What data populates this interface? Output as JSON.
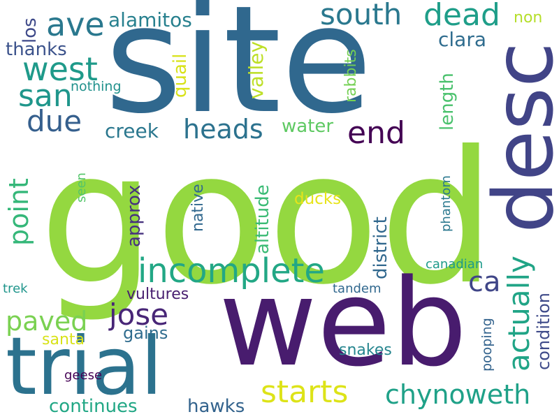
{
  "words": [
    {
      "text": "good",
      "color": "#94d840"
    },
    {
      "text": "site",
      "color": "#30688e"
    },
    {
      "text": "web",
      "color": "#481c6e"
    },
    {
      "text": "desc",
      "color": "#414487"
    },
    {
      "text": "trial",
      "color": "#2c728e"
    },
    {
      "text": "incomplete",
      "color": "#22a785"
    },
    {
      "text": "west",
      "color": "#1f9a8a"
    },
    {
      "text": "south",
      "color": "#2a788e"
    },
    {
      "text": "dead",
      "color": "#1f9e89"
    },
    {
      "text": "ave",
      "color": "#2a788e"
    },
    {
      "text": "san",
      "color": "#1f968b"
    },
    {
      "text": "due",
      "color": "#355f8d"
    },
    {
      "text": "end",
      "color": "#440154"
    },
    {
      "text": "heads",
      "color": "#2c728e"
    },
    {
      "text": "jose",
      "color": "#482677"
    },
    {
      "text": "ca",
      "color": "#404688"
    },
    {
      "text": "actually",
      "color": "#20a486"
    },
    {
      "text": "starts",
      "color": "#dde318"
    },
    {
      "text": "chynoweth",
      "color": "#1fa188"
    },
    {
      "text": "paved",
      "color": "#7ad151"
    },
    {
      "text": "point",
      "color": "#35b779"
    },
    {
      "text": "alamitos",
      "color": "#27808e"
    },
    {
      "text": "los",
      "color": "#3e4989"
    },
    {
      "text": "thanks",
      "color": "#3b528b"
    },
    {
      "text": "clara",
      "color": "#2f6c8e"
    },
    {
      "text": "creek",
      "color": "#2a778e"
    },
    {
      "text": "water",
      "color": "#5ec962"
    },
    {
      "text": "quail",
      "color": "#d8e219"
    },
    {
      "text": "valley",
      "color": "#bddf26"
    },
    {
      "text": "length",
      "color": "#4ac16d"
    },
    {
      "text": "rabbits",
      "color": "#75d054"
    },
    {
      "text": "nothing",
      "color": "#21918c"
    },
    {
      "text": "non",
      "color": "#b5de2b"
    },
    {
      "text": "approx",
      "color": "#46327e"
    },
    {
      "text": "native",
      "color": "#31688e"
    },
    {
      "text": "altitude",
      "color": "#3bbb75"
    },
    {
      "text": "district",
      "color": "#31688e"
    },
    {
      "text": "ducks",
      "color": "#e7e419"
    },
    {
      "text": "seen",
      "color": "#52c569"
    },
    {
      "text": "phantom",
      "color": "#2a788e"
    },
    {
      "text": "condition",
      "color": "#3e4a89"
    },
    {
      "text": "canadian",
      "color": "#1e9b8a"
    },
    {
      "text": "vultures",
      "color": "#481f70"
    },
    {
      "text": "tandem",
      "color": "#31688e"
    },
    {
      "text": "trek",
      "color": "#1f958b"
    },
    {
      "text": "gains",
      "color": "#2f6c8e"
    },
    {
      "text": "santa",
      "color": "#d8e219"
    },
    {
      "text": "pooping",
      "color": "#33638d"
    },
    {
      "text": "snakes",
      "color": "#25858e"
    },
    {
      "text": "geese",
      "color": "#440154"
    },
    {
      "text": "continues",
      "color": "#22a785"
    },
    {
      "text": "hawks",
      "color": "#33638d"
    }
  ]
}
